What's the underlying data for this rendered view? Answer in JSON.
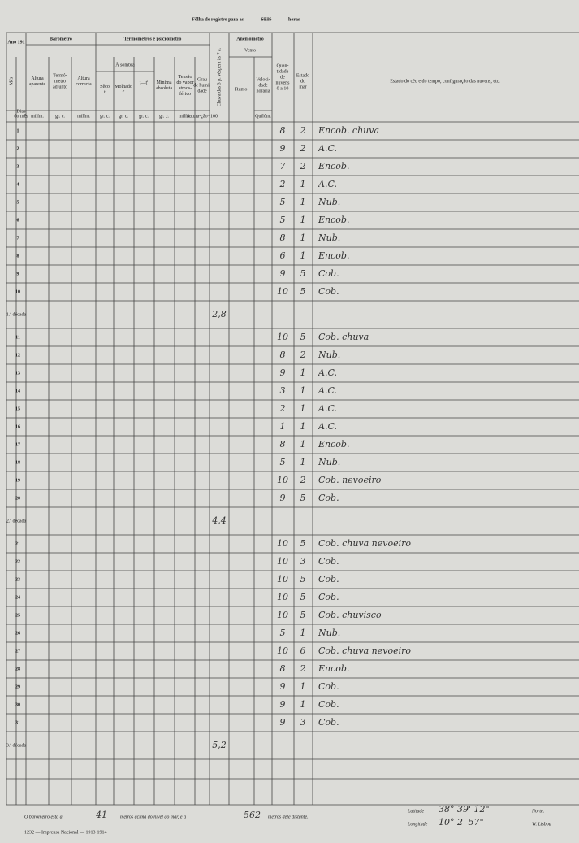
{
  "header": {
    "title_prefix": "Fôlha de registro para as",
    "title_struck": "SEIS",
    "title_suffix": "horas",
    "year": "Ano 191",
    "month": "Mês"
  },
  "columns": {
    "days": [
      "Dias",
      "do mês"
    ],
    "barometer": "Barómetro",
    "baro_apparent": [
      "Altura",
      "aparente"
    ],
    "baro_thermo": [
      "Termó-",
      "metro",
      "adjunto"
    ],
    "baro_correct": [
      "Altura",
      "correcta"
    ],
    "thermo": "Termómetros e psicrómetro",
    "shade": "À sombra",
    "dry": [
      "Sêco",
      "t"
    ],
    "wet": [
      "Molhado",
      "t'"
    ],
    "diff": "t—t'",
    "minimum": [
      "Mínima",
      "absoluta"
    ],
    "vapour": [
      "Tensão",
      "do vapor",
      "atmos-",
      "férico"
    ],
    "humidity": [
      "Grau",
      "de humi-",
      "dade"
    ],
    "rain": "Chuva das 3 p. véspera às 7 a.",
    "anemometer": "Anemómetro",
    "wind": "Vento",
    "direction": "Rumo",
    "speed": [
      "Veloci-",
      "dade",
      "horária"
    ],
    "clouds": [
      "Quan-",
      "tidade",
      "de",
      "nuvens",
      "0 a 10"
    ],
    "sea": [
      "Estado",
      "do",
      "mar"
    ],
    "sky": "Estado do céu e do tempo, configuração das nuvens, etc."
  },
  "units": {
    "baro_apparent": "milím.",
    "baro_thermo": "gr. c.",
    "baro_correct": "milím.",
    "dry": "gr. c.",
    "wet": "gr. c.",
    "diff": "gr. c.",
    "minimum": "gr. c.",
    "vapour": "milím.",
    "humidity": "Satura-ção=100",
    "speed": "Quilóm."
  },
  "rows": [
    {
      "day": "1",
      "clouds": "8",
      "sea": "2",
      "sky": "Encob. chuva"
    },
    {
      "day": "2",
      "clouds": "9",
      "sea": "2",
      "sky": "A.C."
    },
    {
      "day": "3",
      "clouds": "7",
      "sea": "2",
      "sky": "Encob."
    },
    {
      "day": "4",
      "clouds": "2",
      "sea": "1",
      "sky": "A.C."
    },
    {
      "day": "5",
      "clouds": "5",
      "sea": "1",
      "sky": "Nub."
    },
    {
      "day": "6",
      "clouds": "5",
      "sea": "1",
      "sky": "Encob."
    },
    {
      "day": "7",
      "clouds": "8",
      "sea": "1",
      "sky": "Nub."
    },
    {
      "day": "8",
      "clouds": "6",
      "sea": "1",
      "sky": "Encob."
    },
    {
      "day": "9",
      "clouds": "9",
      "sea": "5",
      "sky": "Cob."
    },
    {
      "day": "10",
      "clouds": "10",
      "sea": "5",
      "sky": "Cob."
    },
    {
      "day": "11",
      "clouds": "10",
      "sea": "5",
      "sky": "Cob. chuva"
    },
    {
      "day": "12",
      "clouds": "8",
      "sea": "2",
      "sky": "Nub."
    },
    {
      "day": "13",
      "clouds": "9",
      "sea": "1",
      "sky": "A.C."
    },
    {
      "day": "14",
      "clouds": "3",
      "sea": "1",
      "sky": "A.C."
    },
    {
      "day": "15",
      "clouds": "2",
      "sea": "1",
      "sky": "A.C."
    },
    {
      "day": "16",
      "clouds": "1",
      "sea": "1",
      "sky": "A.C."
    },
    {
      "day": "17",
      "clouds": "8",
      "sea": "1",
      "sky": "Encob."
    },
    {
      "day": "18",
      "clouds": "5",
      "sea": "1",
      "sky": "Nub."
    },
    {
      "day": "19",
      "clouds": "10",
      "sea": "2",
      "sky": "Cob. nevoeiro"
    },
    {
      "day": "20",
      "clouds": "9",
      "sea": "5",
      "sky": "Cob."
    },
    {
      "day": "21",
      "clouds": "10",
      "sea": "5",
      "sky": "Cob. chuva nevoeiro"
    },
    {
      "day": "22",
      "clouds": "10",
      "sea": "3",
      "sky": "Cob."
    },
    {
      "day": "23",
      "clouds": "10",
      "sea": "5",
      "sky": "Cob."
    },
    {
      "day": "24",
      "clouds": "10",
      "sea": "5",
      "sky": "Cob."
    },
    {
      "day": "25",
      "clouds": "10",
      "sea": "5",
      "sky": "Cob. chuvisco"
    },
    {
      "day": "26",
      "clouds": "5",
      "sea": "1",
      "sky": "Nub."
    },
    {
      "day": "27",
      "clouds": "10",
      "sea": "6",
      "sky": "Cob. chuva nevoeiro"
    },
    {
      "day": "28",
      "clouds": "8",
      "sea": "2",
      "sky": "Encob."
    },
    {
      "day": "29",
      "clouds": "9",
      "sea": "1",
      "sky": "Cob."
    },
    {
      "day": "30",
      "clouds": "9",
      "sea": "1",
      "sky": "Cob."
    },
    {
      "day": "31",
      "clouds": "9",
      "sea": "3",
      "sky": "Cob."
    }
  ],
  "decades": [
    {
      "label": "1.ª década",
      "rain": "2,8"
    },
    {
      "label": "2.ª década",
      "rain": "4,4"
    },
    {
      "label": "3.ª década",
      "rain": "5,2"
    }
  ],
  "footer": {
    "baro_a": "O barómetro está a",
    "height": "41",
    "baro_b": "metros acima do nível do mar, e a",
    "distance": "562",
    "baro_c": "metros dêle distante.",
    "lat_label": "Latitude",
    "lat": "38° 39' 12\"",
    "lat_dir": "Norte.",
    "lon_label": "Longitude",
    "lon": "10° 2' 57\"",
    "lon_dir": "W. Lisboa",
    "imprint": "1232 — Imprensa Nacional — 1913-1914"
  }
}
